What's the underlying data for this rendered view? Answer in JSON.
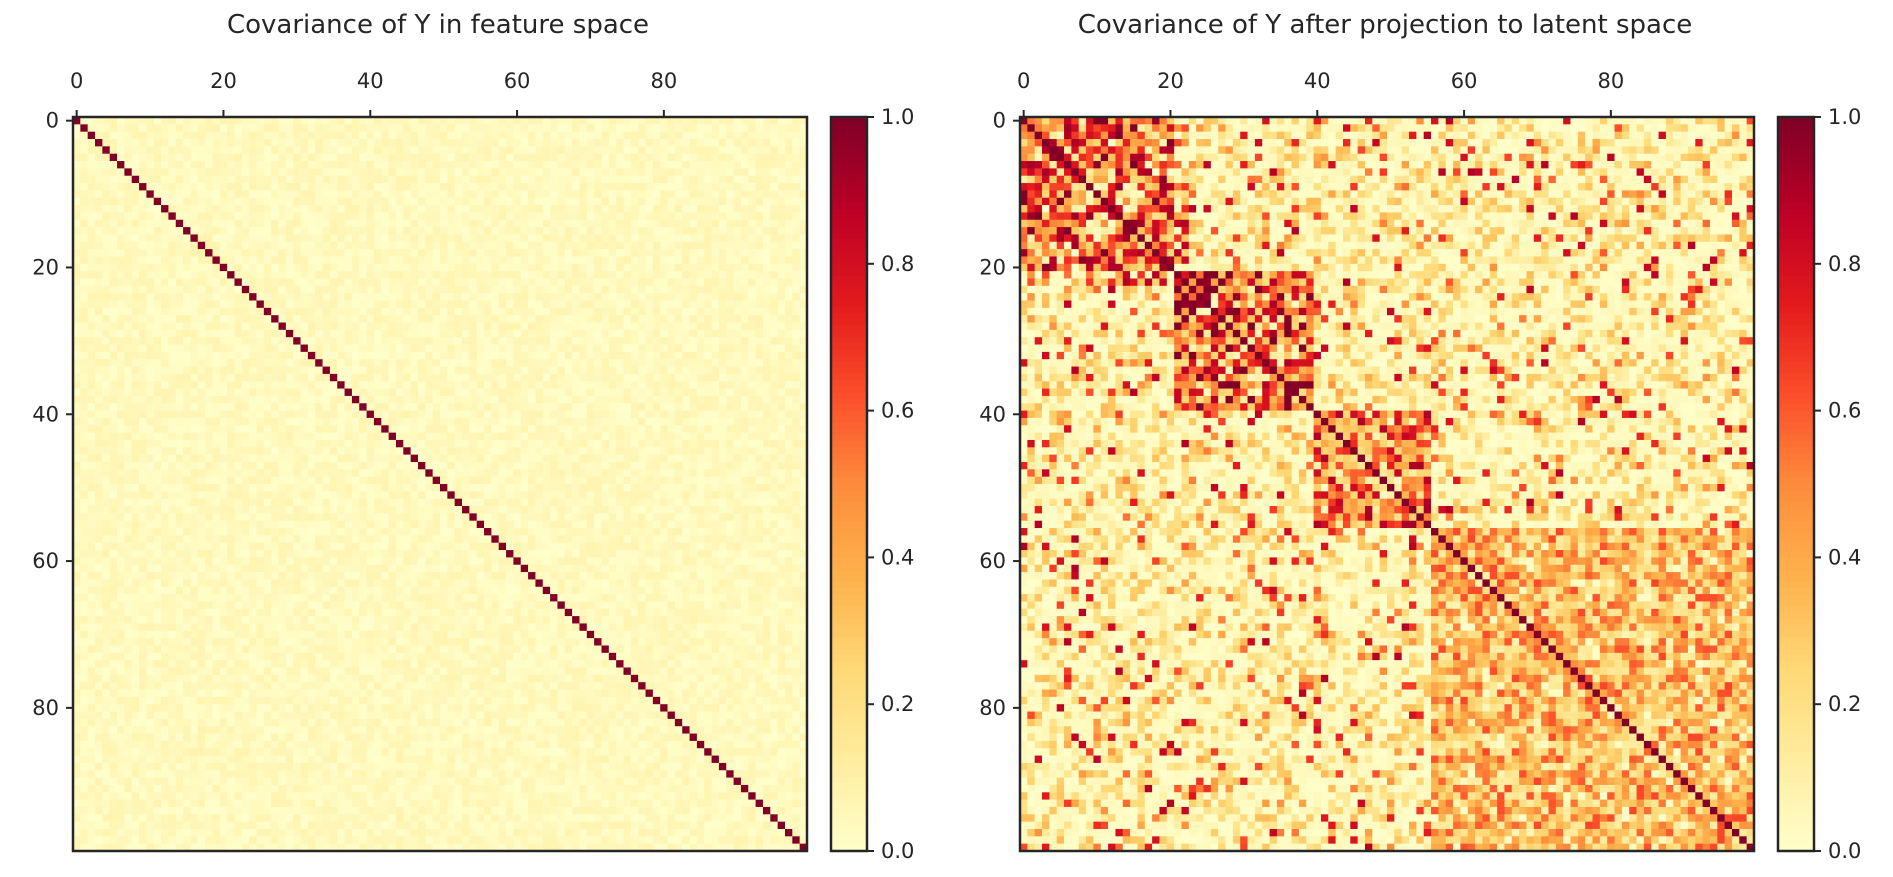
{
  "chart_data": [
    {
      "type": "heatmap",
      "title": "Covariance of Y in feature space",
      "n": 100,
      "x_ticks": [
        0,
        20,
        40,
        60,
        80
      ],
      "y_ticks": [
        0,
        20,
        40,
        60,
        80
      ],
      "x_tick_position": "top",
      "color_range": [
        0,
        1
      ],
      "colormap": "YlOrRd",
      "colorbar_ticks": [
        "0.0",
        "0.2",
        "0.4",
        "0.6",
        "0.8",
        "1.0"
      ],
      "pattern": {
        "diagonal": 1.0,
        "off_diagonal_typical": 0.03,
        "off_diagonal_max": 0.08,
        "blocks": []
      }
    },
    {
      "type": "heatmap",
      "title": "Covariance of Y after projection to latent space",
      "n": 100,
      "x_ticks": [
        0,
        20,
        40,
        60,
        80
      ],
      "y_ticks": [
        0,
        20,
        40,
        60,
        80
      ],
      "x_tick_position": "top",
      "color_range": [
        0,
        1
      ],
      "colormap": "YlOrRd",
      "colorbar_ticks": [
        "0.0",
        "0.2",
        "0.4",
        "0.6",
        "0.8",
        "1.0"
      ],
      "pattern": {
        "diagonal": 1.0,
        "off_diagonal_typical": 0.1,
        "blocks": [
          {
            "start": 0,
            "end": 21,
            "mean": 0.55
          },
          {
            "start": 21,
            "end": 40,
            "mean": 0.6
          },
          {
            "start": 40,
            "end": 56,
            "mean": 0.5
          },
          {
            "start": 56,
            "end": 100,
            "mean": 0.35
          }
        ]
      }
    }
  ]
}
